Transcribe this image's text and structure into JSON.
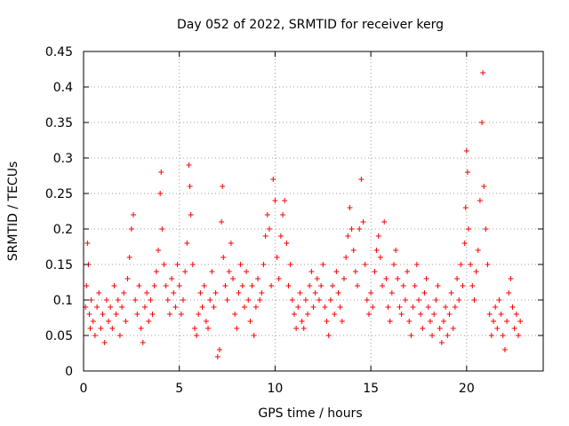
{
  "chart_data": {
    "type": "scatter",
    "title": "Day 052 of 2022, SRMTID for receiver kerg",
    "xlabel": "GPS time / hours",
    "ylabel": "SRMTID / TECUs",
    "xlim": [
      0,
      24
    ],
    "ylim": [
      0,
      0.45
    ],
    "xticks": [
      0,
      5,
      10,
      15,
      20
    ],
    "xtick_labels": [
      "0",
      "5",
      "10",
      "15",
      "20"
    ],
    "yticks": [
      0,
      0.05,
      0.1,
      0.15,
      0.2,
      0.25,
      0.3,
      0.35,
      0.4,
      0.45
    ],
    "ytick_labels": [
      "0",
      "0.05",
      "0.1",
      "0.15",
      "0.2",
      "0.25",
      "0.3",
      "0.35",
      "0.4",
      "0.45"
    ],
    "grid": true,
    "marker": "+",
    "color": "#ff0000",
    "series": [
      {
        "name": "SRMTID",
        "points": [
          [
            0.1,
            0.09
          ],
          [
            0.15,
            0.12
          ],
          [
            0.2,
            0.18
          ],
          [
            0.25,
            0.15
          ],
          [
            0.3,
            0.08
          ],
          [
            0.35,
            0.06
          ],
          [
            0.4,
            0.1
          ],
          [
            0.5,
            0.07
          ],
          [
            0.6,
            0.05
          ],
          [
            0.7,
            0.09
          ],
          [
            0.8,
            0.11
          ],
          [
            0.9,
            0.06
          ],
          [
            1.0,
            0.08
          ],
          [
            1.1,
            0.04
          ],
          [
            1.2,
            0.1
          ],
          [
            1.3,
            0.07
          ],
          [
            1.4,
            0.09
          ],
          [
            1.5,
            0.06
          ],
          [
            1.6,
            0.12
          ],
          [
            1.7,
            0.08
          ],
          [
            1.8,
            0.1
          ],
          [
            1.9,
            0.05
          ],
          [
            2.0,
            0.09
          ],
          [
            2.1,
            0.11
          ],
          [
            2.2,
            0.07
          ],
          [
            2.3,
            0.13
          ],
          [
            2.4,
            0.16
          ],
          [
            2.5,
            0.2
          ],
          [
            2.6,
            0.22
          ],
          [
            2.7,
            0.1
          ],
          [
            2.8,
            0.08
          ],
          [
            2.9,
            0.12
          ],
          [
            3.0,
            0.06
          ],
          [
            3.1,
            0.04
          ],
          [
            3.2,
            0.09
          ],
          [
            3.3,
            0.11
          ],
          [
            3.4,
            0.07
          ],
          [
            3.5,
            0.1
          ],
          [
            3.6,
            0.08
          ],
          [
            3.7,
            0.12
          ],
          [
            3.8,
            0.14
          ],
          [
            3.9,
            0.17
          ],
          [
            4.0,
            0.25
          ],
          [
            4.05,
            0.28
          ],
          [
            4.1,
            0.2
          ],
          [
            4.2,
            0.15
          ],
          [
            4.3,
            0.12
          ],
          [
            4.4,
            0.1
          ],
          [
            4.5,
            0.08
          ],
          [
            4.6,
            0.13
          ],
          [
            4.7,
            0.11
          ],
          [
            4.8,
            0.09
          ],
          [
            4.9,
            0.15
          ],
          [
            5.0,
            0.12
          ],
          [
            5.1,
            0.08
          ],
          [
            5.2,
            0.1
          ],
          [
            5.3,
            0.14
          ],
          [
            5.4,
            0.18
          ],
          [
            5.5,
            0.29
          ],
          [
            5.55,
            0.26
          ],
          [
            5.6,
            0.22
          ],
          [
            5.7,
            0.15
          ],
          [
            5.8,
            0.06
          ],
          [
            5.9,
            0.05
          ],
          [
            6.0,
            0.08
          ],
          [
            6.1,
            0.11
          ],
          [
            6.2,
            0.09
          ],
          [
            6.3,
            0.12
          ],
          [
            6.4,
            0.07
          ],
          [
            6.5,
            0.06
          ],
          [
            6.6,
            0.1
          ],
          [
            6.7,
            0.14
          ],
          [
            6.8,
            0.09
          ],
          [
            6.9,
            0.11
          ],
          [
            7.0,
            0.02
          ],
          [
            7.1,
            0.03
          ],
          [
            7.2,
            0.21
          ],
          [
            7.25,
            0.26
          ],
          [
            7.3,
            0.16
          ],
          [
            7.4,
            0.12
          ],
          [
            7.5,
            0.1
          ],
          [
            7.6,
            0.14
          ],
          [
            7.7,
            0.18
          ],
          [
            7.8,
            0.13
          ],
          [
            7.9,
            0.08
          ],
          [
            8.0,
            0.06
          ],
          [
            8.1,
            0.11
          ],
          [
            8.2,
            0.15
          ],
          [
            8.3,
            0.12
          ],
          [
            8.4,
            0.09
          ],
          [
            8.5,
            0.14
          ],
          [
            8.6,
            0.1
          ],
          [
            8.7,
            0.07
          ],
          [
            8.8,
            0.12
          ],
          [
            8.9,
            0.05
          ],
          [
            9.0,
            0.09
          ],
          [
            9.1,
            0.13
          ],
          [
            9.2,
            0.1
          ],
          [
            9.3,
            0.11
          ],
          [
            9.4,
            0.15
          ],
          [
            9.5,
            0.19
          ],
          [
            9.6,
            0.22
          ],
          [
            9.7,
            0.2
          ],
          [
            9.8,
            0.12
          ],
          [
            9.9,
            0.27
          ],
          [
            10.0,
            0.24
          ],
          [
            10.1,
            0.16
          ],
          [
            10.2,
            0.13
          ],
          [
            10.3,
            0.19
          ],
          [
            10.4,
            0.22
          ],
          [
            10.5,
            0.24
          ],
          [
            10.6,
            0.18
          ],
          [
            10.7,
            0.12
          ],
          [
            10.8,
            0.15
          ],
          [
            10.9,
            0.1
          ],
          [
            11.0,
            0.08
          ],
          [
            11.1,
            0.06
          ],
          [
            11.2,
            0.09
          ],
          [
            11.3,
            0.11
          ],
          [
            11.4,
            0.07
          ],
          [
            11.5,
            0.06
          ],
          [
            11.6,
            0.1
          ],
          [
            11.7,
            0.08
          ],
          [
            11.8,
            0.12
          ],
          [
            11.9,
            0.14
          ],
          [
            12.0,
            0.09
          ],
          [
            12.1,
            0.11
          ],
          [
            12.2,
            0.13
          ],
          [
            12.3,
            0.1
          ],
          [
            12.4,
            0.12
          ],
          [
            12.5,
            0.15
          ],
          [
            12.6,
            0.09
          ],
          [
            12.7,
            0.07
          ],
          [
            12.8,
            0.05
          ],
          [
            12.9,
            0.1
          ],
          [
            13.0,
            0.12
          ],
          [
            13.1,
            0.08
          ],
          [
            13.2,
            0.14
          ],
          [
            13.3,
            0.11
          ],
          [
            13.4,
            0.09
          ],
          [
            13.5,
            0.07
          ],
          [
            13.6,
            0.13
          ],
          [
            13.7,
            0.16
          ],
          [
            13.8,
            0.19
          ],
          [
            13.9,
            0.23
          ],
          [
            14.0,
            0.2
          ],
          [
            14.1,
            0.17
          ],
          [
            14.2,
            0.14
          ],
          [
            14.3,
            0.12
          ],
          [
            14.4,
            0.2
          ],
          [
            14.5,
            0.27
          ],
          [
            14.6,
            0.21
          ],
          [
            14.7,
            0.15
          ],
          [
            14.8,
            0.1
          ],
          [
            14.9,
            0.08
          ],
          [
            15.0,
            0.11
          ],
          [
            15.1,
            0.09
          ],
          [
            15.2,
            0.14
          ],
          [
            15.3,
            0.17
          ],
          [
            15.4,
            0.19
          ],
          [
            15.5,
            0.16
          ],
          [
            15.6,
            0.12
          ],
          [
            15.7,
            0.21
          ],
          [
            15.8,
            0.13
          ],
          [
            15.9,
            0.09
          ],
          [
            16.0,
            0.07
          ],
          [
            16.1,
            0.11
          ],
          [
            16.2,
            0.15
          ],
          [
            16.3,
            0.17
          ],
          [
            16.4,
            0.13
          ],
          [
            16.5,
            0.09
          ],
          [
            16.6,
            0.08
          ],
          [
            16.7,
            0.12
          ],
          [
            16.8,
            0.1
          ],
          [
            16.9,
            0.14
          ],
          [
            17.0,
            0.07
          ],
          [
            17.1,
            0.05
          ],
          [
            17.2,
            0.09
          ],
          [
            17.3,
            0.12
          ],
          [
            17.4,
            0.15
          ],
          [
            17.5,
            0.1
          ],
          [
            17.6,
            0.08
          ],
          [
            17.7,
            0.06
          ],
          [
            17.8,
            0.11
          ],
          [
            17.9,
            0.13
          ],
          [
            18.0,
            0.09
          ],
          [
            18.1,
            0.07
          ],
          [
            18.2,
            0.05
          ],
          [
            18.3,
            0.08
          ],
          [
            18.4,
            0.1
          ],
          [
            18.5,
            0.12
          ],
          [
            18.6,
            0.06
          ],
          [
            18.7,
            0.04
          ],
          [
            18.8,
            0.07
          ],
          [
            18.9,
            0.09
          ],
          [
            19.0,
            0.05
          ],
          [
            19.1,
            0.08
          ],
          [
            19.2,
            0.11
          ],
          [
            19.3,
            0.06
          ],
          [
            19.4,
            0.09
          ],
          [
            19.5,
            0.13
          ],
          [
            19.6,
            0.1
          ],
          [
            19.7,
            0.15
          ],
          [
            19.8,
            0.12
          ],
          [
            19.9,
            0.18
          ],
          [
            19.95,
            0.23
          ],
          [
            20.0,
            0.31
          ],
          [
            20.05,
            0.28
          ],
          [
            20.1,
            0.2
          ],
          [
            20.2,
            0.15
          ],
          [
            20.3,
            0.12
          ],
          [
            20.4,
            0.1
          ],
          [
            20.5,
            0.14
          ],
          [
            20.6,
            0.17
          ],
          [
            20.7,
            0.24
          ],
          [
            20.8,
            0.35
          ],
          [
            20.85,
            0.42
          ],
          [
            20.9,
            0.26
          ],
          [
            21.0,
            0.2
          ],
          [
            21.1,
            0.15
          ],
          [
            21.2,
            0.08
          ],
          [
            21.3,
            0.05
          ],
          [
            21.4,
            0.07
          ],
          [
            21.5,
            0.09
          ],
          [
            21.6,
            0.06
          ],
          [
            21.7,
            0.1
          ],
          [
            21.8,
            0.08
          ],
          [
            21.9,
            0.05
          ],
          [
            22.0,
            0.03
          ],
          [
            22.1,
            0.07
          ],
          [
            22.2,
            0.11
          ],
          [
            22.3,
            0.13
          ],
          [
            22.4,
            0.09
          ],
          [
            22.5,
            0.06
          ],
          [
            22.6,
            0.08
          ],
          [
            22.7,
            0.05
          ],
          [
            22.8,
            0.07
          ]
        ]
      }
    ]
  }
}
